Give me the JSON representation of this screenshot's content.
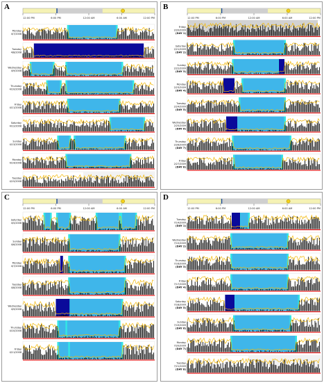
{
  "chart_data": [
    {
      "type": "actogram",
      "panel": "A",
      "axis_ticks": [
        "12:00 PM",
        "6:00 PM",
        "12:00 AM",
        "6:00 AM",
        "12:00 PM"
      ],
      "days": [
        {
          "label": "Monday",
          "date": "4/7/2008",
          "rest": [
            [
              8.3,
              17.0
            ]
          ],
          "offwrist": []
        },
        {
          "label": "Tuesday",
          "date": "4/8/2008",
          "rest": [],
          "offwrist": [
            [
              2.0,
              22.0
            ]
          ]
        },
        {
          "label": "Wednesday",
          "date": "4/9/2008",
          "rest": [
            [
              1.5,
              5.5
            ],
            [
              8.0,
              18.0
            ]
          ],
          "offwrist": []
        },
        {
          "label": "Thursday",
          "date": "4/10/2008",
          "rest": [
            [
              4.5,
              6.8
            ],
            [
              8.0,
              20.0
            ]
          ],
          "offwrist": []
        },
        {
          "label": "Friday",
          "date": "4/11/2008",
          "rest": [
            [
              8.3,
              17.5
            ]
          ],
          "offwrist": []
        },
        {
          "label": "Saturday",
          "date": "4/12/2008",
          "rest": [
            [
              16.0,
              22.0
            ]
          ],
          "offwrist": []
        },
        {
          "label": "Sunday",
          "date": "4/13/2008",
          "rest": [
            [
              6.5,
              8.5
            ],
            [
              9.5,
              18.5
            ]
          ],
          "offwrist": []
        },
        {
          "label": "Monday",
          "date": "4/14/2008",
          "rest": [
            [
              8.0,
              19.5
            ]
          ],
          "offwrist": []
        },
        {
          "label": "Tuesday",
          "date": "4/15/2008",
          "rest": [],
          "offwrist": []
        }
      ]
    },
    {
      "type": "actogram",
      "panel": "B",
      "axis_ticks": [
        "12:00 PM",
        "6:00 PM",
        "12:00 AM",
        "6:00 AM",
        "12:00 PM"
      ],
      "days": [
        {
          "label": "Friday",
          "date": "2/20/2009",
          "tag": "(DAY 1)",
          "rest": [],
          "offwrist": []
        },
        {
          "label": "Saturday",
          "date": "2/21/2009",
          "tag": "(DAY 2)",
          "rest": [
            [
              8.5,
              17.5
            ]
          ],
          "offwrist": []
        },
        {
          "label": "Sunday",
          "date": "2/22/2009",
          "tag": "(DAY 3)",
          "rest": [
            [
              8.3,
              16.5
            ]
          ],
          "offwrist": [
            [
              16.5,
              17.5
            ]
          ]
        },
        {
          "label": "Monday",
          "date": "2/23/2009",
          "tag": "(DAY 4)",
          "rest": [
            [
              10.0,
              17.5
            ]
          ],
          "offwrist": [
            [
              6.5,
              8.5
            ]
          ]
        },
        {
          "label": "Tuesday",
          "date": "2/24/2009",
          "tag": "(DAY 5)",
          "rest": [
            [
              9.5,
              17.5
            ]
          ],
          "offwrist": []
        },
        {
          "label": "Wednesday",
          "date": "2/25/2009",
          "tag": "(DAY 6)",
          "rest": [
            [
              8.5,
              17.5
            ]
          ],
          "offwrist": [
            [
              7.0,
              9.0
            ]
          ]
        },
        {
          "label": "Thursday",
          "date": "2/26/2009",
          "tag": "(DAY 7)",
          "rest": [
            [
              8.3,
              18.5
            ]
          ],
          "offwrist": []
        },
        {
          "label": "Friday",
          "date": "2/27/2009",
          "tag": "(DAY 8)",
          "rest": [
            [
              8.5,
              17.0
            ]
          ],
          "offwrist": []
        }
      ]
    },
    {
      "type": "actogram",
      "panel": "C",
      "axis_ticks": [
        "12:00 PM",
        "6:00 PM",
        "12:00 AM",
        "6:00 AM",
        "12:00 PM"
      ],
      "days": [
        {
          "label": "Saturday",
          "date": "4/5/2008",
          "rest": [
            [
              4.0,
              5.0
            ],
            [
              6.3,
              8.5
            ],
            [
              13.5,
              17.5
            ],
            [
              18.0,
              20.5
            ]
          ],
          "offwrist": []
        },
        {
          "label": "Sunday",
          "date": "4/6/2008",
          "rest": [
            [
              8.5,
              17.5
            ]
          ],
          "offwrist": []
        },
        {
          "label": "Monday",
          "date": "4/7/2008",
          "rest": [
            [
              8.5,
              18.5
            ]
          ],
          "offwrist": [
            [
              6.8,
              7.3
            ]
          ]
        },
        {
          "label": "Tuesday",
          "date": "4/8/2008",
          "rest": [
            [
              8.5,
              18.5
            ]
          ],
          "offwrist": []
        },
        {
          "label": "Wednesday",
          "date": "4/9/2008",
          "rest": [
            [
              8.5,
              18.0
            ]
          ],
          "offwrist": [
            [
              6.0,
              8.5
            ]
          ]
        },
        {
          "label": "Thursday",
          "date": "4/10/2008",
          "rest": [
            [
              6.5,
              8.0
            ],
            [
              8.0,
              17.5
            ]
          ],
          "offwrist": []
        },
        {
          "label": "Friday",
          "date": "4/11/2008",
          "rest": [
            [
              6.5,
              8.5
            ],
            [
              8.5,
              18.0
            ]
          ],
          "offwrist": []
        }
      ]
    },
    {
      "type": "actogram",
      "panel": "D",
      "axis_ticks": [
        "12:00 PM",
        "6:00 PM",
        "12:00 AM",
        "6:00 AM",
        "12:00 PM"
      ],
      "days": [
        {
          "label": "Tuesday",
          "date": "7/14/2009",
          "tag": "(DAY 1)",
          "rest": [
            [
              9.5,
              11.0
            ]
          ],
          "offwrist": [
            [
              8.0,
              9.5
            ]
          ]
        },
        {
          "label": "Wednesday",
          "date": "7/15/2009",
          "tag": "(DAY 2)",
          "rest": [
            [
              8.0,
              18.0
            ]
          ],
          "offwrist": []
        },
        {
          "label": "Thursday",
          "date": "7/16/2009",
          "tag": "(DAY 3)",
          "rest": [
            [
              8.0,
              18.0
            ]
          ],
          "offwrist": []
        },
        {
          "label": "Friday",
          "date": "7/17/2009",
          "tag": "(DAY 4)",
          "rest": [
            [
              8.0,
              18.0
            ]
          ],
          "offwrist": []
        },
        {
          "label": "Saturday",
          "date": "7/18/2009",
          "tag": "(DAY 5)",
          "rest": [
            [
              8.5,
              20.0
            ]
          ],
          "offwrist": [
            [
              6.8,
              8.5
            ]
          ]
        },
        {
          "label": "Sunday",
          "date": "7/19/2009",
          "tag": "(DAY 6)",
          "rest": [
            [
              8.5,
              18.5
            ]
          ],
          "offwrist": []
        },
        {
          "label": "Monday",
          "date": "7/20/2009",
          "tag": "(DAY 7)",
          "rest": [
            [
              8.0,
              19.5
            ]
          ],
          "offwrist": []
        },
        {
          "label": "Tuesday",
          "date": "7/21/2009",
          "tag": "(DAY 8)",
          "rest": [],
          "offwrist": []
        }
      ]
    }
  ],
  "colors": {
    "rest": "#3fb6ea",
    "rest_edge": "#33e5e5",
    "offwrist": "#0a0a9a",
    "activity": "#000000",
    "light": "#f2b705",
    "baseline": "#e21b1b",
    "missing": "#d2d2d2",
    "axis_bar": "#f5f2b5"
  }
}
